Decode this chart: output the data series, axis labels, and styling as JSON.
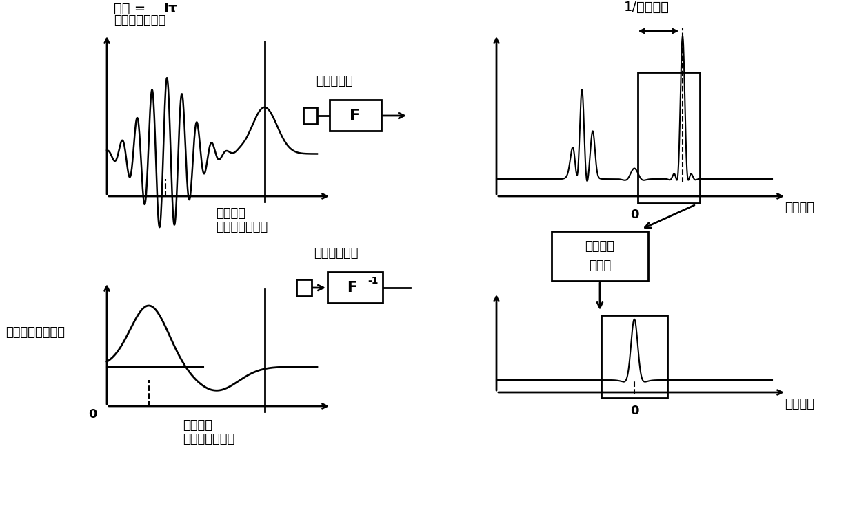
{
  "bg_color": "#ffffff",
  "title_top_left_bold": "强度 = ",
  "title_I_tau": "Iτ",
  "title_top_left_2": "（摄像机水平）",
  "label_spatial_coord": "空间坐标",
  "label_spatial_coord_2": "（摄像机像素）",
  "label_fringe_visibility": "表明条纹的可见性",
  "label_fourier": "傅里叶变换",
  "label_inv_fourier": "傅里叶逆变换",
  "label_spatial_freq_top": "空间频率",
  "label_spatial_freq_bottom": "空间频率",
  "label_fringe_spacing": "1/条纹间隔",
  "label_windowing_1": "加窗以及",
  "label_windowing_2": "重定位",
  "label_F": "F",
  "label_F_inv": "F",
  "label_F_inv_sup": "-1",
  "label_0_top": "0",
  "label_0_bottom": "0",
  "label_O_bl": "O"
}
